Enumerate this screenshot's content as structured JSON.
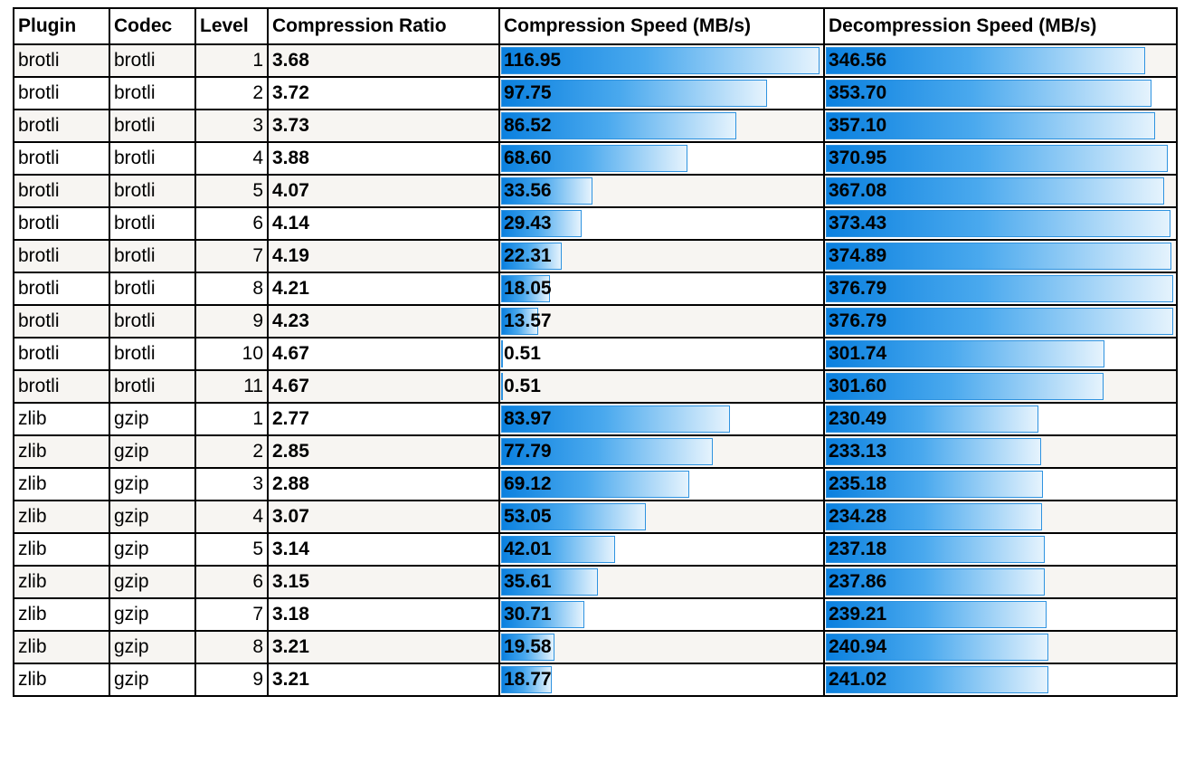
{
  "columns": {
    "plugin": "Plugin",
    "codec": "Codec",
    "level": "Level",
    "ratio": "Compression Ratio",
    "comp_speed": "Compression Speed (MB/s)",
    "decomp_speed": "Decompression Speed (MB/s)"
  },
  "bar_color": "#0a80df",
  "rows": [
    {
      "plugin": "brotli",
      "codec": "brotli",
      "level": "1",
      "ratio": "3.68",
      "comp": "116.95",
      "decomp": "346.56"
    },
    {
      "plugin": "brotli",
      "codec": "brotli",
      "level": "2",
      "ratio": "3.72",
      "comp": "97.75",
      "decomp": "353.70"
    },
    {
      "plugin": "brotli",
      "codec": "brotli",
      "level": "3",
      "ratio": "3.73",
      "comp": "86.52",
      "decomp": "357.10"
    },
    {
      "plugin": "brotli",
      "codec": "brotli",
      "level": "4",
      "ratio": "3.88",
      "comp": "68.60",
      "decomp": "370.95"
    },
    {
      "plugin": "brotli",
      "codec": "brotli",
      "level": "5",
      "ratio": "4.07",
      "comp": "33.56",
      "decomp": "367.08"
    },
    {
      "plugin": "brotli",
      "codec": "brotli",
      "level": "6",
      "ratio": "4.14",
      "comp": "29.43",
      "decomp": "373.43"
    },
    {
      "plugin": "brotli",
      "codec": "brotli",
      "level": "7",
      "ratio": "4.19",
      "comp": "22.31",
      "decomp": "374.89"
    },
    {
      "plugin": "brotli",
      "codec": "brotli",
      "level": "8",
      "ratio": "4.21",
      "comp": "18.05",
      "decomp": "376.79"
    },
    {
      "plugin": "brotli",
      "codec": "brotli",
      "level": "9",
      "ratio": "4.23",
      "comp": "13.57",
      "decomp": "376.79"
    },
    {
      "plugin": "brotli",
      "codec": "brotli",
      "level": "10",
      "ratio": "4.67",
      "comp": "0.51",
      "decomp": "301.74"
    },
    {
      "plugin": "brotli",
      "codec": "brotli",
      "level": "11",
      "ratio": "4.67",
      "comp": "0.51",
      "decomp": "301.60"
    },
    {
      "plugin": "zlib",
      "codec": "gzip",
      "level": "1",
      "ratio": "2.77",
      "comp": "83.97",
      "decomp": "230.49"
    },
    {
      "plugin": "zlib",
      "codec": "gzip",
      "level": "2",
      "ratio": "2.85",
      "comp": "77.79",
      "decomp": "233.13"
    },
    {
      "plugin": "zlib",
      "codec": "gzip",
      "level": "3",
      "ratio": "2.88",
      "comp": "69.12",
      "decomp": "235.18"
    },
    {
      "plugin": "zlib",
      "codec": "gzip",
      "level": "4",
      "ratio": "3.07",
      "comp": "53.05",
      "decomp": "234.28"
    },
    {
      "plugin": "zlib",
      "codec": "gzip",
      "level": "5",
      "ratio": "3.14",
      "comp": "42.01",
      "decomp": "237.18"
    },
    {
      "plugin": "zlib",
      "codec": "gzip",
      "level": "6",
      "ratio": "3.15",
      "comp": "35.61",
      "decomp": "237.86"
    },
    {
      "plugin": "zlib",
      "codec": "gzip",
      "level": "7",
      "ratio": "3.18",
      "comp": "30.71",
      "decomp": "239.21"
    },
    {
      "plugin": "zlib",
      "codec": "gzip",
      "level": "8",
      "ratio": "3.21",
      "comp": "19.58",
      "decomp": "240.94"
    },
    {
      "plugin": "zlib",
      "codec": "gzip",
      "level": "9",
      "ratio": "3.21",
      "comp": "18.77",
      "decomp": "241.02"
    }
  ]
}
